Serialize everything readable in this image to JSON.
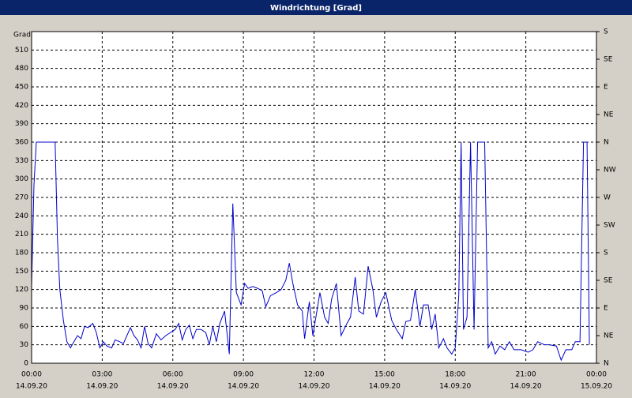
{
  "chart_data": {
    "type": "line",
    "title": "Windrichtung [Grad]",
    "y_label": "Grad",
    "xlim": [
      0,
      24
    ],
    "xticks": [
      {
        "value": 0,
        "label": "00:00"
      },
      {
        "value": 3,
        "label": "03:00"
      },
      {
        "value": 6,
        "label": "06:00"
      },
      {
        "value": 9,
        "label": "09:00"
      },
      {
        "value": 12,
        "label": "12:00"
      },
      {
        "value": 15,
        "label": "15:00"
      },
      {
        "value": 18,
        "label": "18:00"
      },
      {
        "value": 21,
        "label": "21:00"
      },
      {
        "value": 24,
        "label": "00:00"
      }
    ],
    "xtick_dates": [
      "14.09.20",
      "14.09.20",
      "14.09.20",
      "14.09.20",
      "14.09.20",
      "14.09.20",
      "14.09.20",
      "14.09.20",
      "15.09.20"
    ],
    "ylim": [
      0,
      540
    ],
    "yticks": [
      0,
      30,
      60,
      90,
      120,
      150,
      180,
      210,
      240,
      270,
      300,
      330,
      360,
      390,
      420,
      450,
      480,
      510
    ],
    "y2lim": [
      0,
      540
    ],
    "y2ticks": [
      {
        "value": 0,
        "label": "N"
      },
      {
        "value": 45,
        "label": "NE"
      },
      {
        "value": 90,
        "label": "E"
      },
      {
        "value": 135,
        "label": "SE"
      },
      {
        "value": 180,
        "label": "S"
      },
      {
        "value": 225,
        "label": "SW"
      },
      {
        "value": 270,
        "label": "W"
      },
      {
        "value": 315,
        "label": "NW"
      },
      {
        "value": 360,
        "label": "N"
      },
      {
        "value": 405,
        "label": "NE"
      },
      {
        "value": 450,
        "label": "E"
      },
      {
        "value": 495,
        "label": "SE"
      },
      {
        "value": 540,
        "label": "S"
      }
    ],
    "grid": true,
    "series": [
      {
        "name": "Windrichtung",
        "color": "#0000cc",
        "x": [
          0,
          0.1,
          0.2,
          1.0,
          1.1,
          1.2,
          1.35,
          1.5,
          1.65,
          1.8,
          1.95,
          2.1,
          2.25,
          2.4,
          2.6,
          2.75,
          2.9,
          3.05,
          3.2,
          3.4,
          3.55,
          3.75,
          3.9,
          4.2,
          4.35,
          4.5,
          4.65,
          4.8,
          4.95,
          5.1,
          5.3,
          5.5,
          5.7,
          5.9,
          6.1,
          6.25,
          6.4,
          6.55,
          6.7,
          6.85,
          7.0,
          7.2,
          7.4,
          7.55,
          7.7,
          7.85,
          8.0,
          8.2,
          8.4,
          8.55,
          8.7,
          8.9,
          9.05,
          9.2,
          9.4,
          9.6,
          9.8,
          9.95,
          10.15,
          10.4,
          10.6,
          10.8,
          10.95,
          11.1,
          11.3,
          11.5,
          11.6,
          11.8,
          11.95,
          12.1,
          12.25,
          12.45,
          12.6,
          12.75,
          12.95,
          13.15,
          13.4,
          13.55,
          13.75,
          13.9,
          14.1,
          14.3,
          14.5,
          14.65,
          14.85,
          15.05,
          15.3,
          15.5,
          15.75,
          15.9,
          16.1,
          16.3,
          16.5,
          16.65,
          16.85,
          17.0,
          17.15,
          17.3,
          17.5,
          17.65,
          17.85,
          18.0,
          18.15,
          18.25,
          18.35,
          18.5,
          18.65,
          18.8,
          18.95,
          19.25,
          19.4,
          19.55,
          19.7,
          19.9,
          20.1,
          20.3,
          20.5,
          20.8,
          21.1,
          21.3,
          21.5,
          21.8,
          22.0,
          22.3,
          22.5,
          22.7,
          22.95,
          23.1,
          23.3,
          23.45,
          23.6,
          23.7
        ],
        "values": [
          125,
          290,
          360,
          360,
          200,
          120,
          70,
          35,
          25,
          35,
          45,
          40,
          60,
          58,
          65,
          50,
          25,
          35,
          28,
          25,
          38,
          35,
          32,
          58,
          45,
          38,
          25,
          60,
          32,
          25,
          48,
          38,
          45,
          50,
          55,
          65,
          38,
          55,
          62,
          40,
          55,
          55,
          50,
          30,
          60,
          35,
          65,
          85,
          15,
          260,
          115,
          95,
          130,
          122,
          125,
          122,
          118,
          92,
          110,
          115,
          120,
          135,
          163,
          130,
          95,
          85,
          40,
          100,
          45,
          80,
          115,
          75,
          65,
          105,
          130,
          45,
          65,
          75,
          140,
          85,
          80,
          158,
          120,
          75,
          100,
          115,
          70,
          55,
          40,
          68,
          70,
          120,
          60,
          95,
          95,
          55,
          80,
          25,
          40,
          25,
          15,
          25,
          110,
          360,
          55,
          75,
          360,
          55,
          360,
          360,
          25,
          35,
          15,
          28,
          22,
          35,
          22,
          22,
          18,
          22,
          35,
          30,
          30,
          28,
          5,
          22,
          22,
          35,
          35,
          360,
          360,
          30
        ]
      }
    ]
  }
}
